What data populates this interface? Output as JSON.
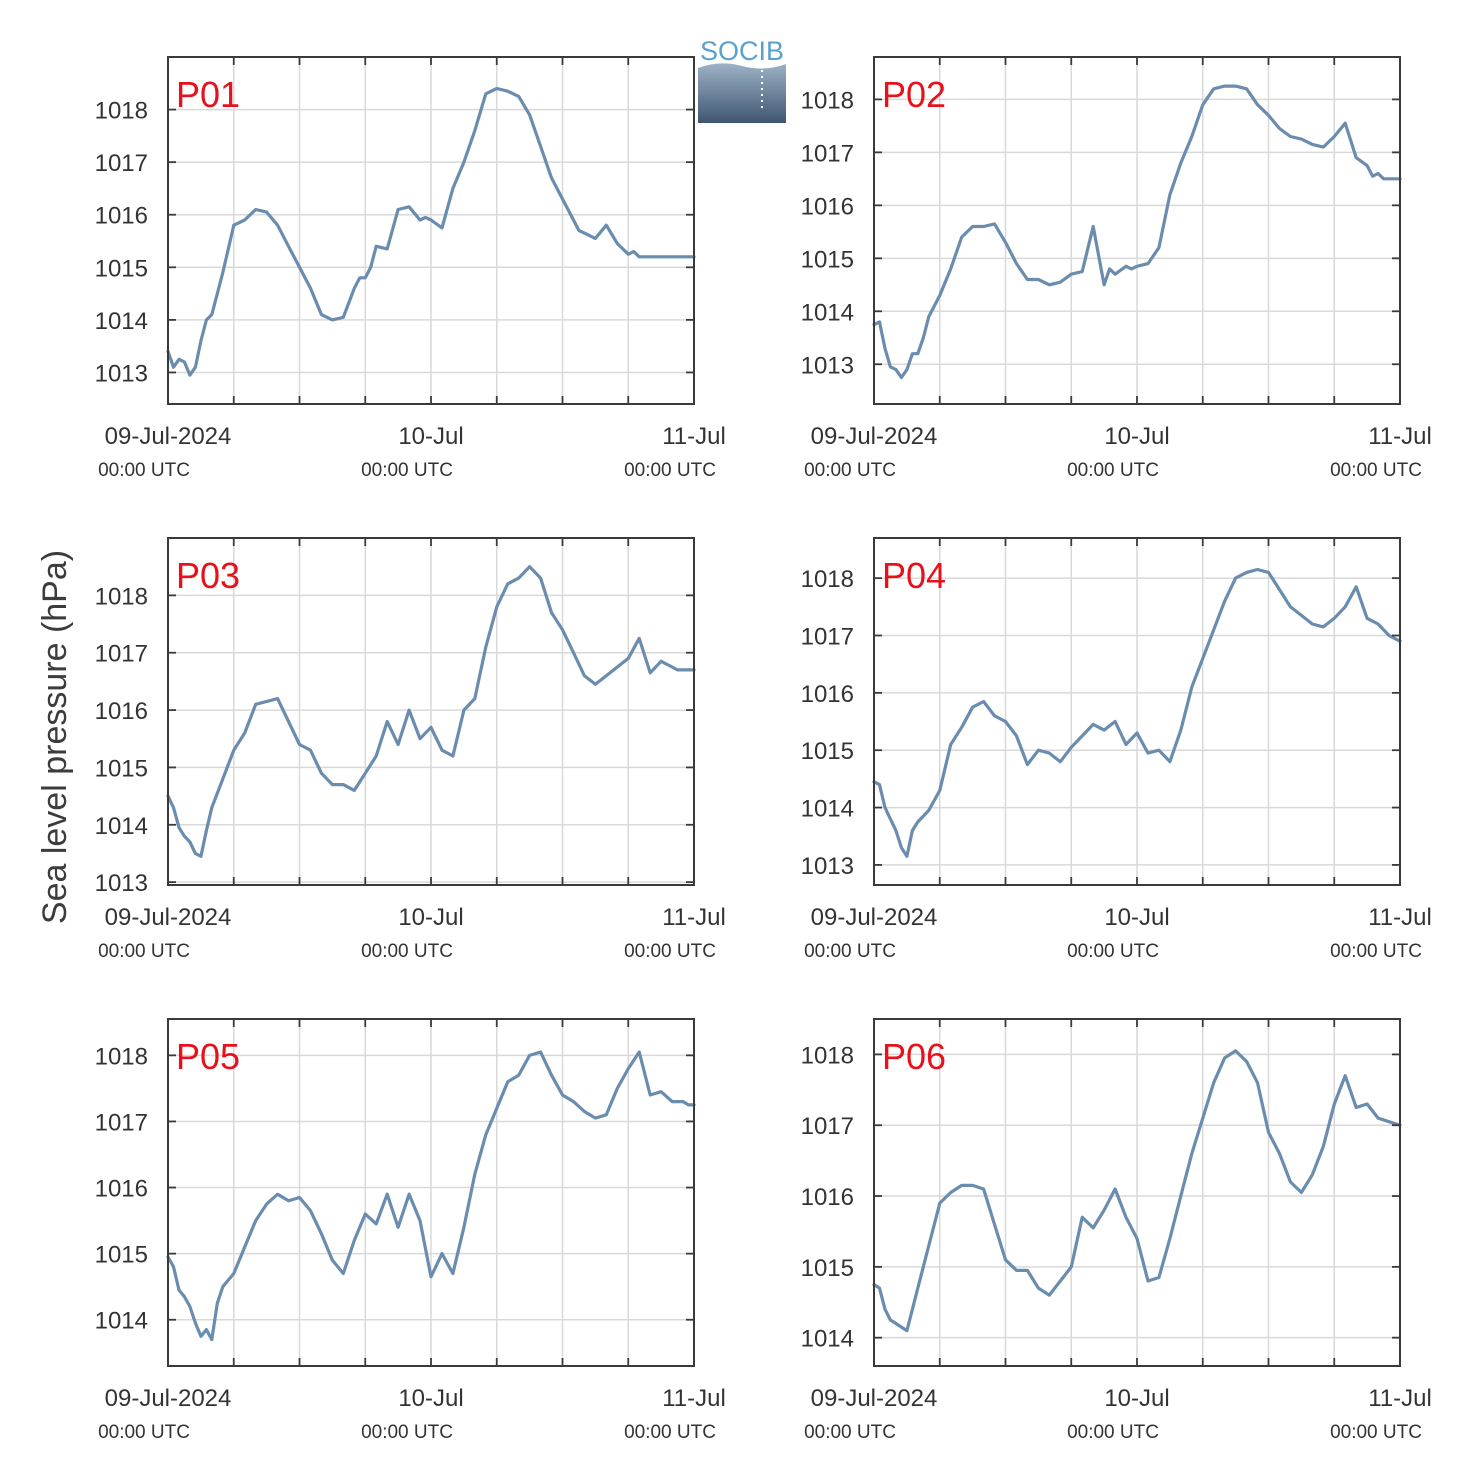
{
  "figure": {
    "ylabel": "Sea level pressure (hPa)",
    "logo_text": "SOCIB"
  },
  "colors": {
    "line": "#6a8cae",
    "panel_label": "#e8111b",
    "grid": "#d9d9d9",
    "axis": "#3a3a3a",
    "text": "#333333"
  },
  "chart_data": [
    {
      "type": "line",
      "name": "P01",
      "grid": true,
      "x_range": [
        0,
        48
      ],
      "ylim": [
        1012.4,
        1019
      ],
      "yticks": [
        1013,
        1014,
        1015,
        1016,
        1017,
        1018
      ],
      "xticklabels": [
        {
          "x": 0,
          "date": "09-Jul-2024",
          "time": "00:00 UTC"
        },
        {
          "x": 24,
          "date": "10-Jul",
          "time": "00:00 UTC"
        },
        {
          "x": 48,
          "date": "11-Jul",
          "time": "00:00 UTC"
        }
      ],
      "x": [
        0,
        0.5,
        1,
        1.5,
        2,
        2.5,
        3,
        3.5,
        4,
        4.5,
        5,
        6,
        7,
        8,
        9,
        10,
        11,
        12,
        13,
        14,
        15,
        16,
        17,
        17.5,
        18,
        18.5,
        19,
        20,
        21,
        22,
        23,
        23.5,
        24,
        25,
        26,
        27,
        28,
        29,
        30,
        31,
        31.5,
        32,
        33,
        33.5,
        34,
        35,
        36,
        37,
        37.5,
        38,
        39,
        40,
        41,
        41.5,
        42,
        42.5,
        43,
        44,
        45,
        45.5,
        46,
        46.5,
        47,
        47.5,
        48
      ],
      "y": [
        1013.4,
        1013.1,
        1013.25,
        1013.2,
        1012.95,
        1013.1,
        1013.6,
        1014.0,
        1014.1,
        1014.5,
        1014.9,
        1015.8,
        1015.9,
        1016.1,
        1016.05,
        1015.8,
        1015.4,
        1015.0,
        1014.6,
        1014.1,
        1014.0,
        1014.05,
        1014.6,
        1014.8,
        1014.8,
        1015.0,
        1015.4,
        1015.35,
        1016.1,
        1016.15,
        1015.9,
        1015.95,
        1015.9,
        1015.75,
        1016.5,
        1017.0,
        1017.6,
        1018.3,
        1018.4,
        1018.35,
        1018.3,
        1018.25,
        1017.9,
        1017.6,
        1017.3,
        1016.7,
        1016.3,
        1015.9,
        1015.7,
        1015.65,
        1015.55,
        1015.8,
        1015.45,
        1015.35,
        1015.25,
        1015.3,
        1015.2,
        1015.2,
        1015.2,
        1015.2,
        1015.2,
        1015.2,
        1015.2,
        1015.2,
        1015.2
      ]
    },
    {
      "type": "line",
      "name": "P02",
      "grid": true,
      "x_range": [
        0,
        48
      ],
      "ylim": [
        1012.25,
        1018.8
      ],
      "yticks": [
        1013,
        1014,
        1015,
        1016,
        1017,
        1018
      ],
      "xticklabels": [
        {
          "x": 0,
          "date": "09-Jul-2024",
          "time": "00:00 UTC"
        },
        {
          "x": 24,
          "date": "10-Jul",
          "time": "00:00 UTC"
        },
        {
          "x": 48,
          "date": "11-Jul",
          "time": "00:00 UTC"
        }
      ],
      "x": [
        0,
        0.5,
        1,
        1.5,
        2,
        2.5,
        3,
        3.5,
        4,
        4.5,
        5,
        6,
        7,
        8,
        9,
        10,
        11,
        12,
        13,
        14,
        15,
        16,
        17,
        18,
        19,
        20,
        21,
        21.5,
        22,
        23,
        23.5,
        24,
        25,
        26,
        27,
        28,
        29,
        30,
        31,
        32,
        33,
        34,
        35,
        36,
        37,
        38,
        39,
        40,
        41,
        42,
        43,
        44,
        45,
        45.5,
        46,
        46.5,
        47,
        47.5,
        48
      ],
      "y": [
        1013.75,
        1013.8,
        1013.3,
        1012.95,
        1012.9,
        1012.75,
        1012.9,
        1013.2,
        1013.2,
        1013.5,
        1013.9,
        1014.3,
        1014.8,
        1015.4,
        1015.6,
        1015.6,
        1015.65,
        1015.3,
        1014.9,
        1014.6,
        1014.6,
        1014.5,
        1014.55,
        1014.7,
        1014.75,
        1015.6,
        1014.5,
        1014.8,
        1014.7,
        1014.85,
        1014.8,
        1014.85,
        1014.9,
        1015.2,
        1016.2,
        1016.8,
        1017.3,
        1017.9,
        1018.2,
        1018.25,
        1018.25,
        1018.2,
        1017.9,
        1017.7,
        1017.45,
        1017.3,
        1017.25,
        1017.15,
        1017.1,
        1017.3,
        1017.55,
        1016.9,
        1016.75,
        1016.55,
        1016.6,
        1016.5,
        1016.5,
        1016.5,
        1016.5
      ]
    },
    {
      "type": "line",
      "name": "P03",
      "grid": true,
      "x_range": [
        0,
        48
      ],
      "ylim": [
        1012.95,
        1019
      ],
      "yticks": [
        1013,
        1014,
        1015,
        1016,
        1017,
        1018
      ],
      "xticklabels": [
        {
          "x": 0,
          "date": "09-Jul-2024",
          "time": "00:00 UTC"
        },
        {
          "x": 24,
          "date": "10-Jul",
          "time": "00:00 UTC"
        },
        {
          "x": 48,
          "date": "11-Jul",
          "time": "00:00 UTC"
        }
      ],
      "x": [
        0,
        0.5,
        1,
        1.5,
        2,
        2.5,
        3,
        3.5,
        4,
        5,
        6,
        7,
        8,
        9,
        10,
        11,
        12,
        13,
        14,
        15,
        16,
        17,
        18,
        19,
        20,
        21,
        22,
        23,
        24,
        25,
        26,
        27,
        28,
        29,
        30,
        31,
        32,
        33,
        34,
        35,
        36,
        37,
        38,
        39,
        40,
        41,
        42,
        43,
        44,
        45,
        46,
        46.5,
        47,
        47.5,
        48
      ],
      "y": [
        1014.5,
        1014.3,
        1013.95,
        1013.8,
        1013.7,
        1013.5,
        1013.45,
        1013.9,
        1014.3,
        1014.8,
        1015.3,
        1015.6,
        1016.1,
        1016.15,
        1016.2,
        1015.8,
        1015.4,
        1015.3,
        1014.9,
        1014.7,
        1014.7,
        1014.6,
        1014.9,
        1015.2,
        1015.8,
        1015.4,
        1016.0,
        1015.5,
        1015.7,
        1015.3,
        1015.2,
        1016.0,
        1016.2,
        1017.1,
        1017.8,
        1018.2,
        1018.3,
        1018.5,
        1018.3,
        1017.7,
        1017.4,
        1017.0,
        1016.6,
        1016.45,
        1016.6,
        1016.75,
        1016.9,
        1017.25,
        1016.65,
        1016.85,
        1016.75,
        1016.7,
        1016.7,
        1016.7,
        1016.7
      ]
    },
    {
      "type": "line",
      "name": "P04",
      "grid": true,
      "x_range": [
        0,
        48
      ],
      "ylim": [
        1012.65,
        1018.7
      ],
      "yticks": [
        1013,
        1014,
        1015,
        1016,
        1017,
        1018
      ],
      "xticklabels": [
        {
          "x": 0,
          "date": "09-Jul-2024",
          "time": "00:00 UTC"
        },
        {
          "x": 24,
          "date": "10-Jul",
          "time": "00:00 UTC"
        },
        {
          "x": 48,
          "date": "11-Jul",
          "time": "00:00 UTC"
        }
      ],
      "x": [
        0,
        0.5,
        1,
        1.5,
        2,
        2.5,
        3,
        3.5,
        4,
        5,
        6,
        7,
        8,
        9,
        10,
        11,
        12,
        13,
        14,
        15,
        16,
        17,
        18,
        19,
        20,
        21,
        22,
        23,
        24,
        25,
        26,
        27,
        28,
        29,
        30,
        31,
        32,
        33,
        34,
        35,
        36,
        37,
        38,
        39,
        40,
        41,
        42,
        43,
        44,
        45,
        46,
        47,
        48
      ],
      "y": [
        1014.45,
        1014.4,
        1014.0,
        1013.8,
        1013.6,
        1013.3,
        1013.15,
        1013.6,
        1013.75,
        1013.95,
        1014.3,
        1015.1,
        1015.4,
        1015.75,
        1015.85,
        1015.6,
        1015.5,
        1015.25,
        1014.75,
        1015.0,
        1014.95,
        1014.8,
        1015.05,
        1015.25,
        1015.45,
        1015.35,
        1015.5,
        1015.1,
        1015.3,
        1014.95,
        1015.0,
        1014.8,
        1015.35,
        1016.1,
        1016.6,
        1017.1,
        1017.6,
        1018.0,
        1018.1,
        1018.15,
        1018.1,
        1017.8,
        1017.5,
        1017.35,
        1017.2,
        1017.15,
        1017.3,
        1017.5,
        1017.85,
        1017.3,
        1017.2,
        1017.0,
        1016.9
      ]
    },
    {
      "type": "line",
      "name": "P05",
      "grid": true,
      "x_range": [
        0,
        48
      ],
      "ylim": [
        1013.3,
        1018.55
      ],
      "yticks": [
        1014,
        1015,
        1016,
        1017,
        1018
      ],
      "xticklabels": [
        {
          "x": 0,
          "date": "09-Jul-2024",
          "time": "00:00 UTC"
        },
        {
          "x": 24,
          "date": "10-Jul",
          "time": "00:00 UTC"
        },
        {
          "x": 48,
          "date": "11-Jul",
          "time": "00:00 UTC"
        }
      ],
      "x": [
        0,
        0.5,
        1,
        1.5,
        2,
        2.5,
        3,
        3.5,
        4,
        4.5,
        5,
        5.5,
        6,
        7,
        8,
        9,
        10,
        11,
        12,
        13,
        14,
        15,
        16,
        17,
        18,
        19,
        20,
        21,
        22,
        23,
        24,
        25,
        26,
        27,
        28,
        29,
        30,
        31,
        32,
        33,
        34,
        35,
        36,
        37,
        38,
        39,
        40,
        41,
        42,
        43,
        44,
        45,
        46,
        47,
        47.5,
        48
      ],
      "y": [
        1014.95,
        1014.8,
        1014.45,
        1014.35,
        1014.2,
        1013.95,
        1013.75,
        1013.85,
        1013.7,
        1014.25,
        1014.5,
        1014.6,
        1014.7,
        1015.1,
        1015.5,
        1015.75,
        1015.9,
        1015.8,
        1015.85,
        1015.65,
        1015.3,
        1014.9,
        1014.7,
        1015.2,
        1015.6,
        1015.45,
        1015.9,
        1015.4,
        1015.9,
        1015.5,
        1014.65,
        1015.0,
        1014.7,
        1015.4,
        1016.2,
        1016.8,
        1017.2,
        1017.6,
        1017.7,
        1018.0,
        1018.05,
        1017.7,
        1017.4,
        1017.3,
        1017.15,
        1017.05,
        1017.1,
        1017.5,
        1017.8,
        1018.05,
        1017.4,
        1017.45,
        1017.3,
        1017.3,
        1017.25,
        1017.25
      ]
    },
    {
      "type": "line",
      "name": "P06",
      "grid": true,
      "x_range": [
        0,
        48
      ],
      "ylim": [
        1013.6,
        1018.5
      ],
      "yticks": [
        1014,
        1015,
        1016,
        1017,
        1018
      ],
      "xticklabels": [
        {
          "x": 0,
          "date": "09-Jul-2024",
          "time": "00:00 UTC"
        },
        {
          "x": 24,
          "date": "10-Jul",
          "time": "00:00 UTC"
        },
        {
          "x": 48,
          "date": "11-Jul",
          "time": "00:00 UTC"
        }
      ],
      "x": [
        0,
        0.5,
        1,
        1.5,
        2,
        2.5,
        3,
        3.5,
        4,
        5,
        6,
        7,
        8,
        9,
        10,
        11,
        12,
        13,
        14,
        15,
        16,
        17,
        18,
        19,
        20,
        21,
        22,
        23,
        24,
        25,
        26,
        27,
        28,
        29,
        30,
        31,
        32,
        33,
        34,
        35,
        36,
        37,
        38,
        39,
        40,
        41,
        42,
        43,
        44,
        45,
        46,
        47,
        48
      ],
      "y": [
        1014.75,
        1014.7,
        1014.4,
        1014.25,
        1014.2,
        1014.15,
        1014.1,
        1014.4,
        1014.7,
        1015.3,
        1015.9,
        1016.05,
        1016.15,
        1016.15,
        1016.1,
        1015.6,
        1015.1,
        1014.95,
        1014.95,
        1014.7,
        1014.6,
        1014.8,
        1015.0,
        1015.7,
        1015.55,
        1015.8,
        1016.1,
        1015.7,
        1015.4,
        1014.8,
        1014.85,
        1015.4,
        1016.0,
        1016.6,
        1017.1,
        1017.6,
        1017.95,
        1018.05,
        1017.9,
        1017.6,
        1016.9,
        1016.6,
        1016.2,
        1016.05,
        1016.3,
        1016.7,
        1017.3,
        1017.7,
        1017.25,
        1017.3,
        1017.1,
        1017.05,
        1017.0
      ]
    }
  ]
}
